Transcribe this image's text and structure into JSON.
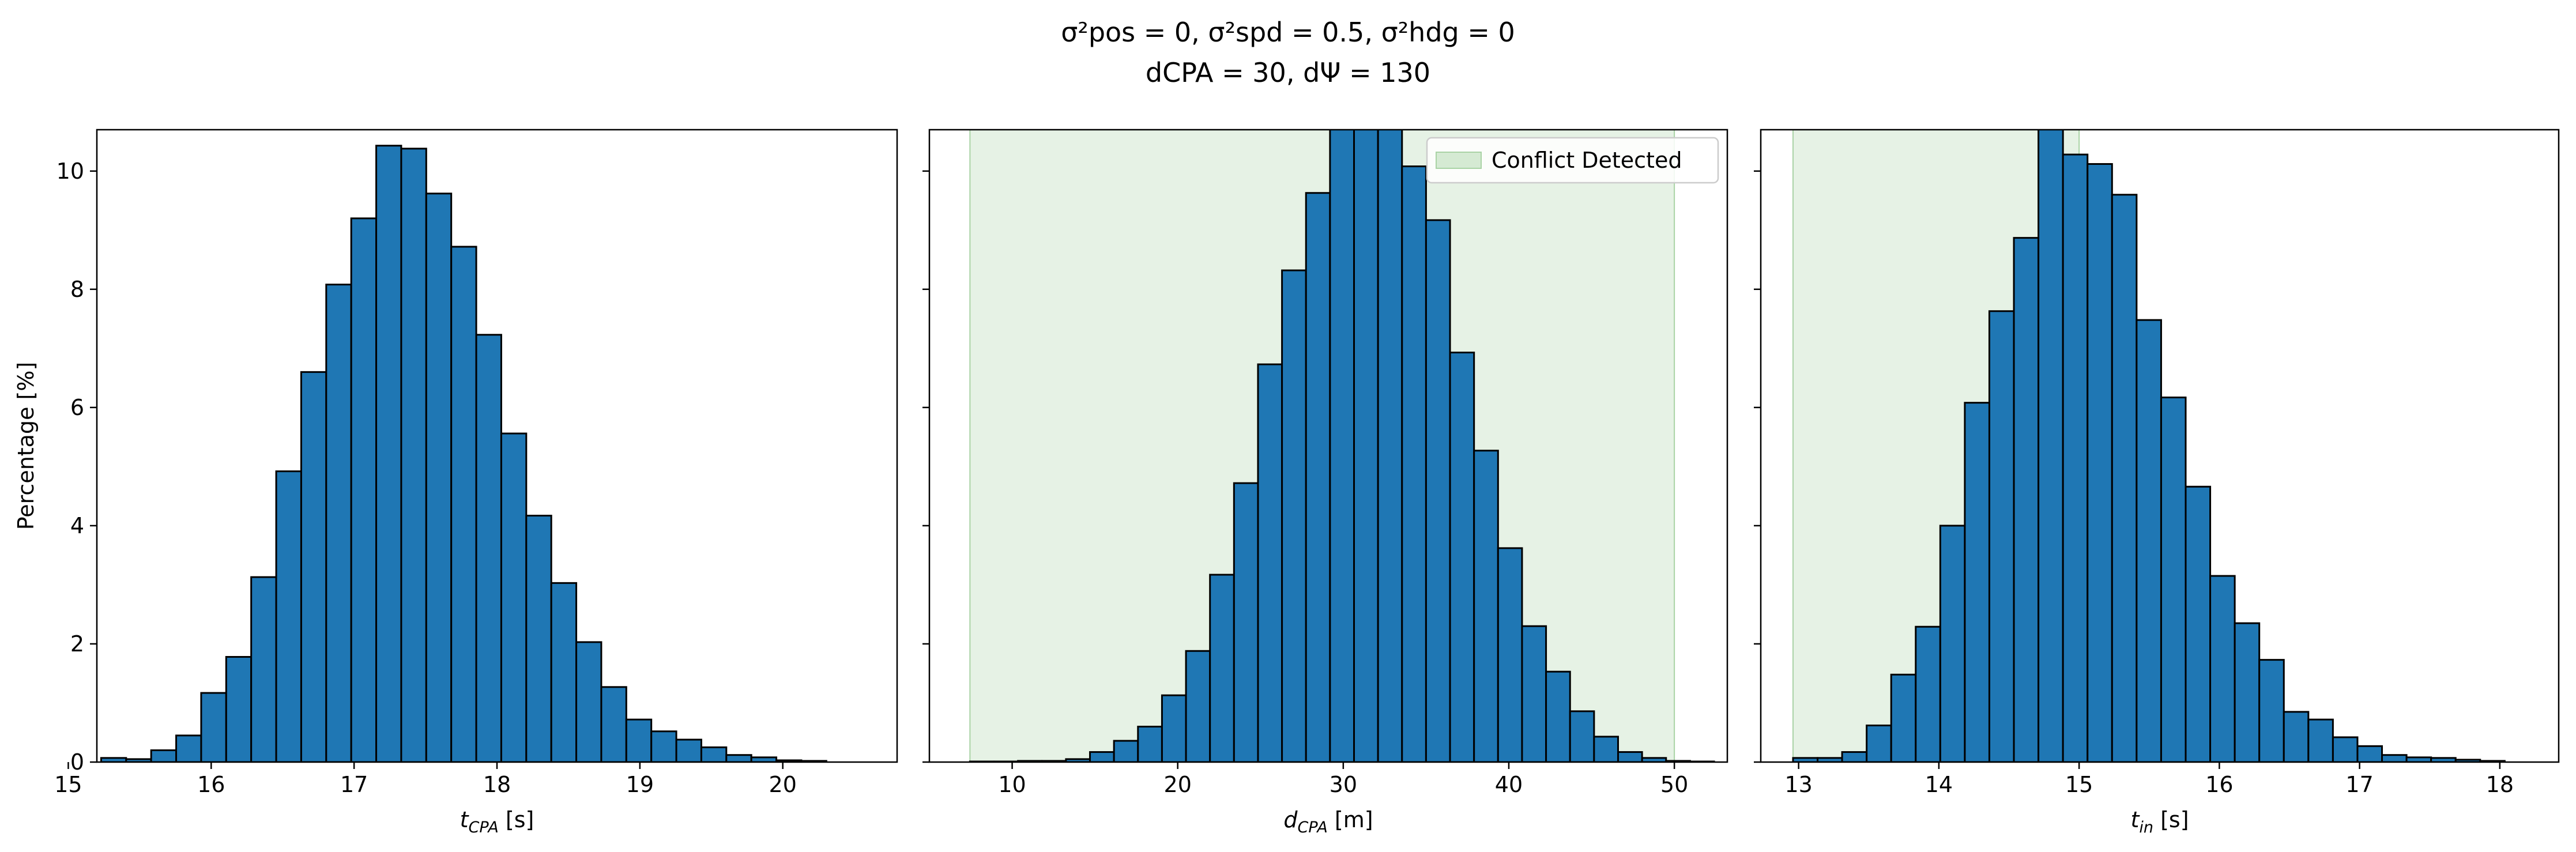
{
  "figure": {
    "title_line1": "σ²pos = 0, σ²spd = 0.5, σ²hdg = 0",
    "title_line2": "dCPA = 30, dΨ = 130"
  },
  "colors": {
    "bar_fill": "#1f77b4",
    "bar_edge": "#000000",
    "conflict_fill": "#d5ead3",
    "conflict_edge": "#a9d3a5"
  },
  "chart_data": [
    {
      "type": "bar",
      "xlabel": "t_CPA [s]",
      "ylabel": "Percentage [%]",
      "xlim": [
        15.2,
        20.8
      ],
      "ylim": [
        0,
        10.7
      ],
      "xticks": [
        15,
        16,
        17,
        18,
        19,
        20
      ],
      "yticks": [
        0,
        2,
        4,
        6,
        8,
        10
      ],
      "bin_start": 15.23,
      "bin_width": 0.175,
      "values": [
        0.07,
        0.05,
        0.2,
        0.45,
        1.17,
        1.78,
        3.13,
        4.92,
        6.6,
        8.08,
        9.2,
        10.43,
        10.38,
        9.62,
        8.72,
        7.23,
        5.56,
        4.17,
        3.03,
        2.03,
        1.27,
        0.72,
        0.52,
        0.38,
        0.25,
        0.12,
        0.08,
        0.03,
        0.02
      ],
      "shaded_region": null,
      "legend": null
    },
    {
      "type": "bar",
      "xlabel": "d_CPA [m]",
      "ylabel": "",
      "xlim": [
        5.0,
        53.2
      ],
      "ylim": [
        0,
        10.7
      ],
      "xticks": [
        10,
        20,
        30,
        40,
        50
      ],
      "yticks": [
        0,
        2,
        4,
        6,
        8,
        10
      ],
      "bin_start": 7.45,
      "bin_width": 1.45,
      "values": [
        0.01,
        0.01,
        0.02,
        0.02,
        0.05,
        0.17,
        0.36,
        0.6,
        1.13,
        1.88,
        3.17,
        4.72,
        6.73,
        8.32,
        9.63,
        10.73,
        11.6,
        10.85,
        10.08,
        9.17,
        6.93,
        5.27,
        3.62,
        2.3,
        1.53,
        0.86,
        0.43,
        0.17,
        0.07,
        0.02,
        0.01
      ],
      "shaded_region": [
        7.45,
        50.0
      ],
      "legend": {
        "label": "Conflict Detected",
        "position": "upper right"
      }
    },
    {
      "type": "bar",
      "xlabel": "t_in [s]",
      "ylabel": "",
      "xlim": [
        12.73,
        18.42
      ],
      "ylim": [
        0,
        10.7
      ],
      "xticks": [
        13,
        14,
        15,
        16,
        17,
        18
      ],
      "yticks": [
        0,
        2,
        4,
        6,
        8,
        10
      ],
      "bin_start": 12.96,
      "bin_width": 0.175,
      "values": [
        0.07,
        0.07,
        0.17,
        0.62,
        1.48,
        2.29,
        4.0,
        6.08,
        7.63,
        8.87,
        11.32,
        10.28,
        10.12,
        9.6,
        7.48,
        6.17,
        4.66,
        3.15,
        2.35,
        1.73,
        0.85,
        0.72,
        0.42,
        0.27,
        0.12,
        0.08,
        0.07,
        0.04,
        0.02
      ],
      "shaded_region": [
        12.96,
        15.0
      ],
      "legend": null
    }
  ]
}
